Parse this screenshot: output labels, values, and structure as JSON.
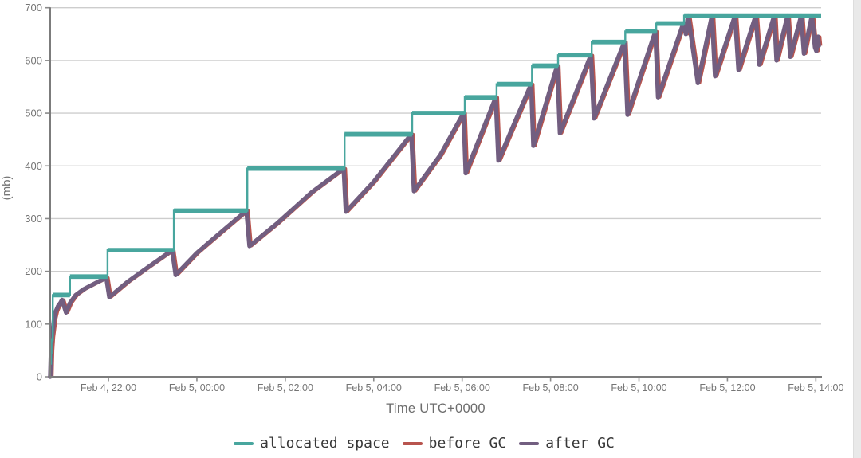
{
  "page": {
    "background": "#ffffff",
    "right_strip_color": "#e9e9e9"
  },
  "chart_data": {
    "type": "line",
    "title": "",
    "description": "JVM-style memory usage sawtooth: allocated heap space steps up while after-GC usage rises and drops at each garbage collection",
    "grid": "horizontal",
    "x_axis": {
      "title": "Time UTC+0000",
      "time_origin_hours": "hours after Feb 4, 20:00 UTC",
      "range_hours": [
        0.683,
        18.12
      ],
      "tick_hours": [
        2,
        4,
        6,
        8,
        10,
        12,
        14,
        16,
        18
      ],
      "tick_labels": [
        "Feb 4, 22:00",
        "Feb 5, 00:00",
        "Feb 5, 02:00",
        "Feb 5, 04:00",
        "Feb 5, 06:00",
        "Feb 5, 08:00",
        "Feb 5, 10:00",
        "Feb 5, 12:00",
        "Feb 5, 14:00"
      ]
    },
    "y_axis": {
      "title": "(mb)",
      "range": [
        0,
        700
      ],
      "ticks": [
        0,
        100,
        200,
        300,
        400,
        500,
        600,
        700
      ]
    },
    "legend": {
      "position": "bottom",
      "items": [
        {
          "label": "allocated space",
          "color": "#48a69e"
        },
        {
          "label": "before GC",
          "color": "#b8544e"
        },
        {
          "label": "after GC",
          "color": "#725e80"
        }
      ]
    },
    "colors": {
      "allocated_space": "#48a69e",
      "before_gc": "#b8544e",
      "after_gc": "#725e80",
      "gridline": "#cdcdcd",
      "axis": "#7c7c7c",
      "tick_text": "#757575",
      "axis_title_text": "#6d6d6d"
    },
    "series": [
      {
        "name": "allocated space",
        "render": "step",
        "color": "#48a69e",
        "steps_t_mb": [
          [
            0.683,
            25
          ],
          [
            0.7,
            45
          ],
          [
            0.71,
            70
          ],
          [
            0.74,
            155
          ],
          [
            1.13,
            190
          ],
          [
            1.98,
            240
          ],
          [
            3.48,
            315
          ],
          [
            5.14,
            395
          ],
          [
            7.34,
            460
          ],
          [
            8.87,
            500
          ],
          [
            10.06,
            530
          ],
          [
            10.78,
            555
          ],
          [
            11.58,
            590
          ],
          [
            12.17,
            610
          ],
          [
            12.93,
            635
          ],
          [
            13.69,
            655
          ],
          [
            14.39,
            670
          ],
          [
            15.02,
            685
          ]
        ],
        "end_hour": 18.12
      },
      {
        "name": "before GC",
        "render": "line",
        "color": "#b8544e",
        "note": "almost fully occluded by the after-GC line; visible as red slivers at the top/right edge of each GC drop",
        "gc_peaks_t_mb": [
          [
            0.95,
            146
          ],
          [
            1.95,
            188
          ],
          [
            3.44,
            240
          ],
          [
            5.12,
            315
          ],
          [
            7.32,
            395
          ],
          [
            8.85,
            460
          ],
          [
            10.03,
            500
          ],
          [
            10.76,
            530
          ],
          [
            11.56,
            555
          ],
          [
            12.15,
            590
          ],
          [
            12.91,
            610
          ],
          [
            13.67,
            635
          ],
          [
            14.37,
            655
          ],
          [
            15.0,
            670
          ],
          [
            15.11,
            685
          ],
          [
            15.65,
            685
          ],
          [
            16.17,
            685
          ],
          [
            16.64,
            685
          ],
          [
            17.06,
            685
          ],
          [
            17.36,
            685
          ],
          [
            17.67,
            685
          ],
          [
            17.91,
            685
          ]
        ],
        "render_offset_hours": 0.045
      },
      {
        "name": "after GC",
        "render": "line",
        "color": "#725e80",
        "points_t_mb": [
          [
            0.683,
            0
          ],
          [
            0.7,
            50
          ],
          [
            0.72,
            75
          ],
          [
            0.75,
            95
          ],
          [
            0.77,
            110
          ],
          [
            0.81,
            124
          ],
          [
            0.86,
            134
          ],
          [
            0.92,
            141
          ],
          [
            0.95,
            146
          ],
          [
            1.04,
            122
          ],
          [
            1.13,
            140
          ],
          [
            1.26,
            155
          ],
          [
            1.44,
            166
          ],
          [
            1.67,
            176
          ],
          [
            1.95,
            188
          ],
          [
            2.02,
            151
          ],
          [
            2.43,
            180
          ],
          [
            2.9,
            208
          ],
          [
            3.44,
            240
          ],
          [
            3.52,
            193
          ],
          [
            4.0,
            235
          ],
          [
            4.6,
            278
          ],
          [
            5.12,
            315
          ],
          [
            5.19,
            248
          ],
          [
            5.8,
            290
          ],
          [
            6.6,
            350
          ],
          [
            7.32,
            395
          ],
          [
            7.37,
            313
          ],
          [
            8.0,
            370
          ],
          [
            8.85,
            460
          ],
          [
            8.91,
            352
          ],
          [
            9.5,
            420
          ],
          [
            10.03,
            500
          ],
          [
            10.08,
            386
          ],
          [
            10.76,
            530
          ],
          [
            10.82,
            410
          ],
          [
            11.56,
            555
          ],
          [
            11.61,
            438
          ],
          [
            12.15,
            590
          ],
          [
            12.21,
            462
          ],
          [
            12.91,
            610
          ],
          [
            12.98,
            490
          ],
          [
            13.67,
            635
          ],
          [
            13.74,
            497
          ],
          [
            14.37,
            655
          ],
          [
            14.43,
            530
          ],
          [
            15.0,
            670
          ],
          [
            15.06,
            650
          ],
          [
            15.11,
            685
          ],
          [
            15.33,
            557
          ],
          [
            15.65,
            685
          ],
          [
            15.72,
            570
          ],
          [
            16.17,
            685
          ],
          [
            16.25,
            582
          ],
          [
            16.64,
            685
          ],
          [
            16.72,
            592
          ],
          [
            17.06,
            685
          ],
          [
            17.11,
            600
          ],
          [
            17.36,
            685
          ],
          [
            17.42,
            607
          ],
          [
            17.67,
            685
          ],
          [
            17.73,
            613
          ],
          [
            17.91,
            685
          ],
          [
            17.98,
            625
          ],
          [
            18.01,
            618
          ],
          [
            18.05,
            645
          ],
          [
            18.07,
            628
          ]
        ]
      }
    ]
  }
}
